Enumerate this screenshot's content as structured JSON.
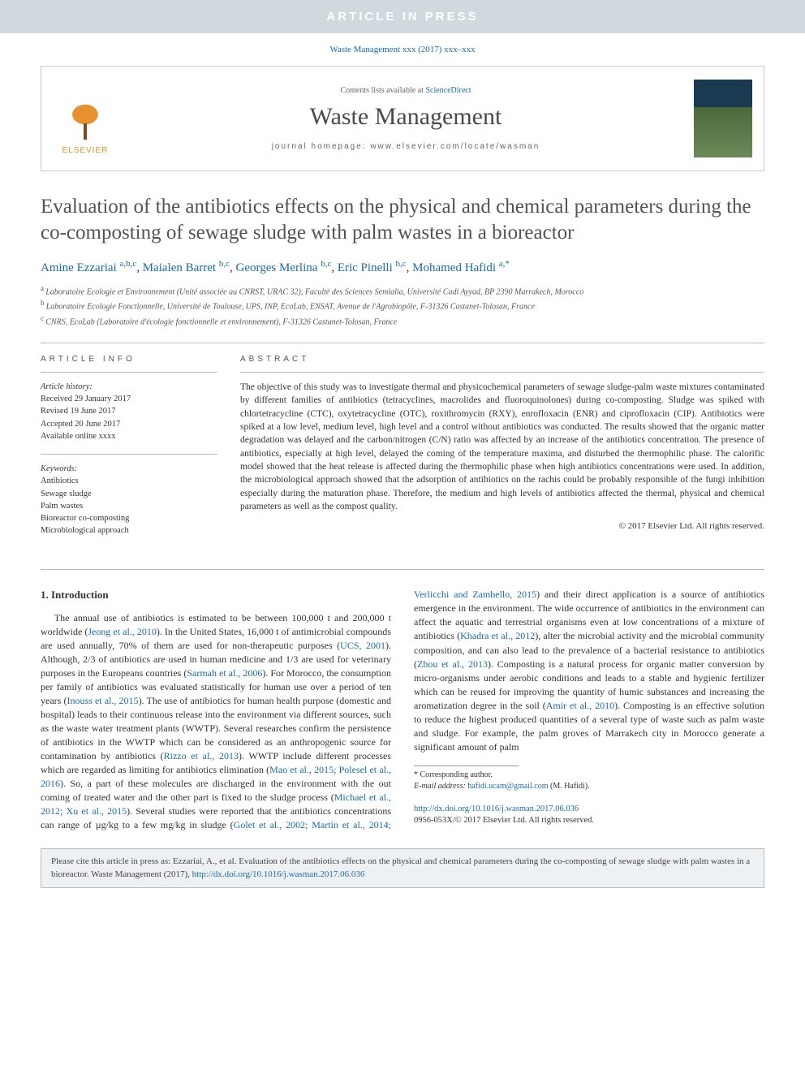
{
  "banner_text": "ARTICLE IN PRESS",
  "citation_line": "Waste Management xxx (2017) xxx–xxx",
  "header": {
    "contents_prefix": "Contents lists available at ",
    "sciencedirect": "ScienceDirect",
    "journal": "Waste Management",
    "homepage_label": "journal homepage: ",
    "homepage_url": "www.elsevier.com/locate/wasman",
    "elsevier_label": "ELSEVIER"
  },
  "title": "Evaluation of the antibiotics effects on the physical and chemical parameters during the co-composting of sewage sludge with palm wastes in a bioreactor",
  "authors": [
    {
      "name": "Amine Ezzariai",
      "aff": "a,b,c"
    },
    {
      "name": "Maialen Barret",
      "aff": "b,c"
    },
    {
      "name": "Georges Merlina",
      "aff": "b,c"
    },
    {
      "name": "Eric Pinelli",
      "aff": "b,c"
    },
    {
      "name": "Mohamed Hafidi",
      "aff": "a,*",
      "corr": true
    }
  ],
  "affiliations": [
    {
      "sup": "a",
      "text": "Laboratoire Ecologie et Environnement (Unité associée au CNRST, URAC 32), Faculté des Sciences Semlalia, Université Cadi Ayyad, BP 2390 Marrakech, Morocco"
    },
    {
      "sup": "b",
      "text": "Laboratoire Ecologie Fonctionnelle, Université de Toulouse, UPS, INP, EcoLab, ENSAT, Avenue de l'Agrobiopôle, F-31326 Castanet-Tolosan, France"
    },
    {
      "sup": "c",
      "text": "CNRS, EcoLab (Laboratoire d'écologie fonctionnelle et environnement), F-31326 Castanet-Tolosan, France"
    }
  ],
  "info_heading": "ARTICLE INFO",
  "abstract_heading": "ABSTRACT",
  "history": {
    "label": "Article history:",
    "received": "Received 29 January 2017",
    "revised": "Revised 19 June 2017",
    "accepted": "Accepted 20 June 2017",
    "online": "Available online xxxx"
  },
  "keywords": {
    "label": "Keywords:",
    "items": [
      "Antibiotics",
      "Sewage sludge",
      "Palm wastes",
      "Bioreactor co-composting",
      "Microbiological approach"
    ]
  },
  "abstract": "The objective of this study was to investigate thermal and physicochemical parameters of sewage sludge-palm waste mixtures contaminated by different families of antibiotics (tetracyclines, macrolides and fluoroquinolones) during co-composting. Sludge was spiked with chlortetracycline (CTC), oxytetracycline (OTC), roxithromycin (RXY), enrofloxacin (ENR) and ciprofloxacin (CIP). Antibiotics were spiked at a low level, medium level, high level and a control without antibiotics was conducted. The results showed that the organic matter degradation was delayed and the carbon/nitrogen (C/N) ratio was affected by an increase of the antibiotics concentration. The presence of antibiotics, especially at high level, delayed the coming of the temperature maxima, and disturbed the thermophilic phase. The calorific model showed that the heat release is affected during the thermophilic phase when high antibiotics concentrations were used. In addition, the microbiological approach showed that the adsorption of antibiotics on the rachis could be probably responsible of the fungi inhibition especially during the maturation phase. Therefore, the medium and high levels of antibiotics affected the thermal, physical and chemical parameters as well as the compost quality.",
  "copyright": "© 2017 Elsevier Ltd. All rights reserved.",
  "section1_heading": "1. Introduction",
  "body": {
    "p1a": "The annual use of antibiotics is estimated to be between 100,000 t and 200,000 t worldwide (",
    "c1": "Jeong et al., 2010",
    "p1b": "). In the United States, 16,000 t of antimicrobial compounds are used annually, 70% of them are used for non-therapeutic purposes (",
    "c2": "UCS, 2001",
    "p1c": "). Although, 2/3 of antibiotics are used in human medicine and 1/3 are used for veterinary purposes in the Europeans countries (",
    "c3": "Sarmah et al., 2006",
    "p1d": "). For Morocco, the consumption per family of antibiotics was evaluated statistically for human use over a period of ten years (",
    "c4": "Inouss et al., 2015",
    "p1e": "). The use of antibiotics for human health purpose (domestic and hospital) leads to their continuous release into the environment via different sources, such as the waste water treatment plants (WWTP). Several researches confirm the persistence of antibiotics in the WWTP which can be considered as an anthropogenic source for contamination by antibiotics (",
    "c5": "Rizzo et al., 2013",
    "p1f": "). WWTP include different processes which are regarded as limiting for antibiotics elimination (",
    "c6": "Mao",
    "c6b": "et al., 2015; Polesel et al., 2016",
    "p2a": "). So, a part of these molecules are discharged in the environment with the out coming of treated water and the other part is fixed to the sludge process (",
    "c7": "Michael et al., 2012; Xu et al., 2015",
    "p2b": "). Several studies were reported that the antibiotics concentrations can range of µg/kg to a few mg/kg in sludge (",
    "c8": "Golet et al., 2002; Martín et al., 2014; Verlicchi and Zambello, 2015",
    "p2c": ") and their direct application is a source of antibiotics emergence in the environment. The wide occurrence of antibiotics in the environment can affect the aquatic and terrestrial organisms even at low concentrations of a mixture of antibiotics (",
    "c9": "Khadra et al., 2012",
    "p2d": "), alter the microbial activity and the microbial community composition, and can also lead to the prevalence of a bacterial resistance to antibiotics (",
    "c10": "Zhou et al., 2013",
    "p2e": "). Composting is a natural process for organic matter conversion by micro-organisms under aerobic conditions and leads to a stable and hygienic fertilizer which can be reused for improving the quantity of humic substances and increasing the aromatization degree in the soil (",
    "c11": "Amir et al., 2010",
    "p2f": "). Composting is an effective solution to reduce the highest produced quantities of a several type of waste such as palm waste and sludge. For example, the palm groves of Marrakech city in Morocco generate a significant amount of palm"
  },
  "corr": {
    "mark": "* Corresponding author.",
    "email_label": "E-mail address: ",
    "email": "hafidi.ucam@gmail.com",
    "email_who": " (M. Hafidi)."
  },
  "doi": {
    "url": "http://dx.doi.org/10.1016/j.wasman.2017.06.036",
    "issn": "0956-053X/© 2017 Elsevier Ltd. All rights reserved."
  },
  "footer": {
    "text_a": "Please cite this article in press as: Ezzariai, A., et al. Evaluation of the antibiotics effects on the physical and chemical parameters during the co-composting of sewage sludge with palm wastes in a bioreactor. Waste Management (2017), ",
    "doi": "http://dx.doi.org/10.1016/j.wasman.2017.06.036"
  },
  "colors": {
    "banner_bg": "#d0d9dd",
    "link": "#1a6ba8",
    "elsevier_orange": "#e8922e",
    "footer_bg": "#eef1f3",
    "rule": "#bbbbbb"
  }
}
